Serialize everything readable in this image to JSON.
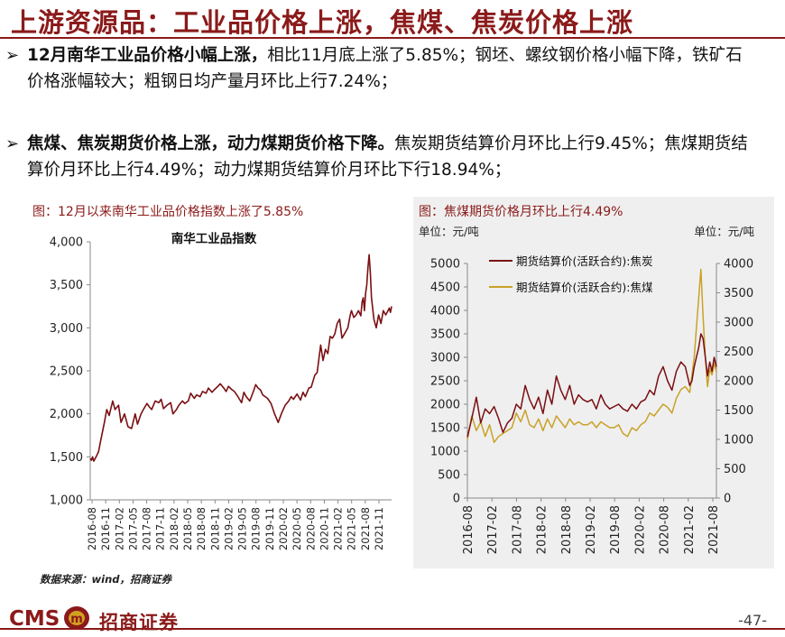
{
  "page": {
    "title": "上游资源品：工业品价格上涨，焦煤、焦炭价格上涨",
    "page_number": "-47-",
    "source": "数据来源：wind，招商证券"
  },
  "bullets": [
    {
      "marker": "➢",
      "bold": "12月南华工业品价格小幅上涨，",
      "text": "相比11月底上涨了5.85%；钢坯、螺纹钢价格小幅下降，铁矿石价格涨幅较大；粗钢日均产量月环比上行7.24%；"
    },
    {
      "marker": "➢",
      "bold": "焦煤、焦炭期货价格上涨，动力煤期货价格下降。",
      "text": "焦炭期货结算价月环比上行9.45%；焦煤期货结算价月环比上行4.49%；动力煤期货结算价月环比下行18.94%；"
    }
  ],
  "logo": {
    "brand": "CMS",
    "badge": "m",
    "name": "招商证券"
  },
  "colors": {
    "accent": "#8b1a1a",
    "coke": "#7a0f12",
    "coking_coal": "#c9a227"
  },
  "chart_data": [
    {
      "type": "line",
      "caption": "图：12月以来南华工业品价格指数上涨了5.85%",
      "title": "南华工业品指数",
      "xlabel": "",
      "ylabel": "",
      "ylim": [
        1000,
        4000
      ],
      "yticks": [
        "1,000",
        "1,500",
        "2,000",
        "2,500",
        "3,000",
        "3,500",
        "4,000"
      ],
      "xticks": [
        "2016-08",
        "2016-11",
        "2017-02",
        "2017-05",
        "2017-08",
        "2017-11",
        "2018-02",
        "2018-05",
        "2018-08",
        "2018-11",
        "2019-02",
        "2019-05",
        "2019-08",
        "2019-11",
        "2020-02",
        "2020-05",
        "2020-08",
        "2020-11",
        "2021-02",
        "2021-05",
        "2021-08",
        "2021-11"
      ],
      "series": [
        {
          "name": "南华工业品指数",
          "x": [
            0,
            0.1,
            0.2,
            0.3,
            0.5,
            0.7,
            0.9,
            1.2,
            1.4,
            1.6,
            1.9,
            2.1,
            2.4,
            2.6,
            2.9,
            3.2,
            3.5,
            3.8,
            4.0,
            4.3,
            4.5,
            4.8,
            5.0,
            5.2,
            5.5,
            5.8,
            6.0,
            6.2,
            6.5,
            6.8,
            7.0,
            7.3,
            7.5,
            7.8,
            8.0,
            8.3,
            8.5,
            8.8,
            9.0,
            9.3,
            9.5,
            9.8,
            10.0,
            10.3,
            10.5,
            10.8,
            11.0,
            11.3,
            11.5,
            11.7,
            12.0,
            12.2,
            12.5,
            12.8,
            13.0,
            13.2,
            13.5,
            13.8,
            14.0,
            14.2,
            14.4,
            14.6,
            14.8,
            15.0,
            15.3,
            15.6,
            15.9,
            16.2,
            16.5,
            16.8,
            17.0,
            17.2,
            17.5,
            17.8,
            18.0,
            18.2,
            18.5,
            18.7,
            19.0,
            19.2,
            19.5,
            19.7,
            19.9,
            20.1,
            20.3,
            20.5,
            20.7,
            20.9,
            21.1,
            21.3,
            21.6,
            21.8,
            22.0,
            22.1,
            22.3,
            22.5,
            22.7,
            22.9,
            23.0,
            23.1,
            23.2,
            23.3,
            23.4,
            23.5,
            23.6,
            23.7,
            23.8,
            24.0,
            24.2,
            24.4,
            24.6,
            24.8,
            25.0,
            25.2,
            25.3,
            25.4,
            25.5
          ],
          "values": [
            1480,
            1460,
            1500,
            1450,
            1500,
            1560,
            1700,
            1900,
            2050,
            1980,
            2150,
            2050,
            2100,
            1900,
            2000,
            1850,
            1830,
            2000,
            1880,
            2000,
            2050,
            2120,
            2080,
            2050,
            2150,
            2130,
            2170,
            2060,
            2100,
            2130,
            2000,
            2050,
            2100,
            2150,
            2120,
            2150,
            2240,
            2180,
            2220,
            2200,
            2260,
            2240,
            2300,
            2250,
            2280,
            2320,
            2350,
            2300,
            2260,
            2320,
            2280,
            2260,
            2200,
            2130,
            2250,
            2200,
            2150,
            2260,
            2340,
            2300,
            2280,
            2220,
            2200,
            2180,
            2120,
            2000,
            1900,
            2010,
            2100,
            2150,
            2200,
            2170,
            2230,
            2160,
            2250,
            2200,
            2300,
            2310,
            2450,
            2480,
            2800,
            2620,
            2750,
            2700,
            2900,
            2880,
            2930,
            3050,
            3100,
            2880,
            2950,
            3000,
            3150,
            3200,
            3120,
            3150,
            3200,
            3140,
            3300,
            3350,
            3200,
            3400,
            3500,
            3700,
            3850,
            3650,
            3350,
            3100,
            3000,
            3150,
            3050,
            3200,
            3150,
            3200,
            3230,
            3180,
            3250
          ]
        }
      ]
    },
    {
      "type": "line",
      "caption": "图：焦煤期货价格月环比上行4.49%",
      "unit_left": "单位：元/吨",
      "unit_right": "单位：元/吨",
      "ylim_left": [
        0,
        5000
      ],
      "ylim_right": [
        0,
        4000
      ],
      "yticks_left": [
        "0",
        "500",
        "1000",
        "1500",
        "2000",
        "2500",
        "3000",
        "3500",
        "4000",
        "4500",
        "5000"
      ],
      "yticks_right": [
        "0",
        "500",
        "1000",
        "1500",
        "2000",
        "2500",
        "3000",
        "3500",
        "4000"
      ],
      "xticks": [
        "2016-08",
        "2017-02",
        "2017-08",
        "2018-02",
        "2018-08",
        "2019-02",
        "2019-08",
        "2020-02",
        "2020-08",
        "2021-02",
        "2021-08"
      ],
      "legend": "top-left",
      "series": [
        {
          "name": "期货结算价(活跃合约):焦炭",
          "axis": "left",
          "x": [
            0,
            0.2,
            0.4,
            0.6,
            0.8,
            1.0,
            1.2,
            1.4,
            1.6,
            1.8,
            2.0,
            2.2,
            2.4,
            2.6,
            2.8,
            3.0,
            3.2,
            3.4,
            3.6,
            3.8,
            4.0,
            4.2,
            4.4,
            4.6,
            4.8,
            5.0,
            5.2,
            5.4,
            5.6,
            5.8,
            6.0,
            6.2,
            6.4,
            6.6,
            6.8,
            7.0,
            7.2,
            7.4,
            7.6,
            7.8,
            8.0,
            8.2,
            8.4,
            8.6,
            8.8,
            9.0,
            9.2,
            9.4,
            9.6,
            9.8,
            10.0,
            10.1,
            10.2,
            10.3,
            10.4,
            10.5,
            10.6,
            10.7,
            10.8,
            10.9,
            11.0,
            11.1,
            11.2
          ],
          "values": [
            1300,
            1700,
            2150,
            1600,
            1900,
            1800,
            1950,
            1700,
            1400,
            1600,
            1700,
            2000,
            1900,
            2400,
            2100,
            1900,
            2150,
            1800,
            2300,
            2000,
            2600,
            2300,
            2100,
            2400,
            2000,
            2200,
            2100,
            2050,
            2100,
            1900,
            2200,
            2000,
            1900,
            1950,
            2000,
            1900,
            1850,
            2000,
            1900,
            2050,
            2100,
            2300,
            2200,
            2600,
            2800,
            2500,
            2300,
            2700,
            2900,
            2800,
            2400,
            2500,
            2800,
            3000,
            3200,
            3500,
            3400,
            3000,
            2600,
            2900,
            2700,
            3000,
            2800
          ]
        },
        {
          "name": "期货结算价(活跃合约):焦煤",
          "axis": "right",
          "x": [
            0,
            0.2,
            0.4,
            0.6,
            0.8,
            1.0,
            1.2,
            1.4,
            1.6,
            1.8,
            2.0,
            2.2,
            2.4,
            2.6,
            2.8,
            3.0,
            3.2,
            3.4,
            3.6,
            3.8,
            4.0,
            4.2,
            4.4,
            4.6,
            4.8,
            5.0,
            5.2,
            5.4,
            5.6,
            5.8,
            6.0,
            6.2,
            6.4,
            6.6,
            6.8,
            7.0,
            7.2,
            7.4,
            7.6,
            7.8,
            8.0,
            8.2,
            8.4,
            8.6,
            8.8,
            9.0,
            9.2,
            9.4,
            9.6,
            9.8,
            10.0,
            10.1,
            10.2,
            10.3,
            10.4,
            10.5,
            10.6,
            10.7,
            10.8,
            10.9,
            11.0,
            11.1,
            11.2
          ],
          "values": [
            1000,
            1400,
            1150,
            1300,
            1050,
            1250,
            950,
            1050,
            1100,
            1150,
            1200,
            1450,
            1300,
            1500,
            1250,
            1200,
            1350,
            1150,
            1350,
            1200,
            1400,
            1300,
            1200,
            1350,
            1250,
            1300,
            1250,
            1250,
            1300,
            1200,
            1300,
            1250,
            1200,
            1200,
            1250,
            1100,
            1050,
            1200,
            1150,
            1250,
            1300,
            1450,
            1400,
            1500,
            1600,
            1550,
            1450,
            1700,
            1850,
            1900,
            1800,
            2100,
            2400,
            2900,
            3400,
            3900,
            3100,
            2400,
            1900,
            2200,
            2100,
            2300,
            2150
          ]
        }
      ]
    }
  ]
}
